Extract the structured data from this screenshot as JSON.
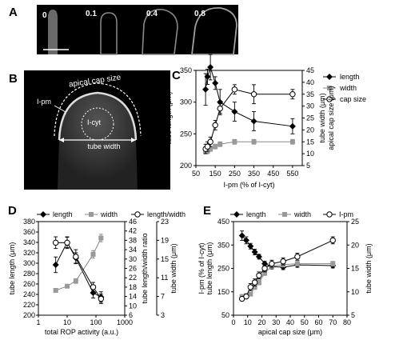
{
  "panel_letters": {
    "a": "A",
    "b": "B",
    "c": "C",
    "d": "D",
    "e": "E"
  },
  "panel_a": {
    "labels": [
      "0",
      "0.1",
      "0.4",
      "0.8"
    ]
  },
  "panel_b": {
    "cap_label": "apical cap size",
    "pm_label": "I-pm",
    "cyt_label": "I-cyt",
    "width_label": "tube width"
  },
  "chart_data": [
    {
      "panel": "C",
      "type": "line",
      "xlabel": "I-pm (% of I-cyt)",
      "ylabel_left": "tube length (μm)",
      "ylabel_right_1": "tube width (μm)",
      "ylabel_right_2": "apical cap size (μm)",
      "xlim": [
        50,
        600
      ],
      "xticks": [
        50,
        150,
        250,
        350,
        450,
        550
      ],
      "ylim_left": [
        200,
        350
      ],
      "yticks_left": [
        200,
        250,
        300,
        350
      ],
      "ylim_right": [
        5,
        45
      ],
      "yticks_right": [
        5,
        10,
        15,
        20,
        25,
        30,
        35,
        40,
        45
      ],
      "legend": [
        "length",
        "width",
        "cap size"
      ],
      "series": [
        {
          "name": "length",
          "axis": "left",
          "marker": "diamond-filled",
          "x": [
            100,
            110,
            125,
            150,
            175,
            250,
            350,
            550
          ],
          "y": [
            320,
            340,
            355,
            330,
            300,
            285,
            270,
            262
          ],
          "err": [
            25,
            12,
            20,
            10,
            20,
            15,
            15,
            12
          ]
        },
        {
          "name": "width",
          "axis": "right",
          "marker": "square-gray",
          "x": [
            100,
            110,
            125,
            150,
            175,
            250,
            350,
            550
          ],
          "y": [
            11,
            11,
            12,
            13,
            14,
            15,
            15,
            15
          ],
          "err": [
            1,
            1,
            1,
            1,
            1,
            1,
            1,
            1
          ]
        },
        {
          "name": "cap size",
          "axis": "right",
          "marker": "circle-open",
          "x": [
            100,
            110,
            125,
            150,
            175,
            250,
            350,
            550
          ],
          "y": [
            12,
            13,
            15,
            22,
            29,
            37,
            35,
            35
          ],
          "err": [
            2,
            2,
            2,
            2,
            2,
            2,
            4,
            2
          ]
        }
      ]
    },
    {
      "panel": "D",
      "type": "line",
      "xlabel": "total ROP activity (a.u.)",
      "ylabel_left": "tube length (μm)",
      "ylabel_right_1": "tube length/width ratio",
      "ylabel_right_2": "tube width (μm)",
      "xscale": "log",
      "xlim": [
        1,
        1000
      ],
      "xticks": [
        1,
        10,
        100,
        1000
      ],
      "ylim_left": [
        200,
        380
      ],
      "yticks_left": [
        200,
        220,
        240,
        260,
        280,
        300,
        320,
        340,
        360,
        380
      ],
      "ticks_right_1": [
        6,
        10,
        14,
        18,
        22,
        26,
        30,
        34,
        38,
        42,
        46
      ],
      "ticks_right_2": [
        3,
        7,
        11,
        15,
        19,
        23
      ],
      "legend": [
        "length",
        "width",
        "length/width"
      ],
      "series": [
        {
          "name": "length",
          "axis": "left",
          "marker": "diamond-filled",
          "x": [
            4,
            10,
            20,
            80,
            150
          ],
          "y": [
            297,
            340,
            310,
            243,
            235
          ],
          "err": [
            15,
            10,
            10,
            10,
            10
          ]
        },
        {
          "name": "width",
          "axis": "right2",
          "marker": "square-gray",
          "x": [
            4,
            10,
            20,
            80,
            150
          ],
          "y": [
            8.3,
            9.2,
            10.3,
            16,
            19.5
          ],
          "err": [
            0.3,
            0.3,
            0.5,
            0.8,
            0.8
          ]
        },
        {
          "name": "length/width",
          "axis": "right1",
          "marker": "circle-open",
          "x": [
            4,
            10,
            20,
            80,
            150
          ],
          "y": [
            37,
            37,
            31,
            18,
            13
          ],
          "err": [
            2.5,
            2.5,
            3,
            2,
            2
          ]
        }
      ]
    },
    {
      "panel": "E",
      "type": "line",
      "xlabel": "apical cap size (μm)",
      "ylabel_left_1": "I-pm (% of I-cyt)",
      "ylabel_left_2": "tube length (μm)",
      "ylabel_right": "tube width (μm)",
      "xlim": [
        0,
        80
      ],
      "xticks": [
        0,
        10,
        20,
        30,
        40,
        50,
        60,
        70,
        80
      ],
      "ylim_left": [
        50,
        450
      ],
      "yticks_left": [
        50,
        150,
        250,
        350,
        450
      ],
      "ylim_right": [
        5,
        25
      ],
      "yticks_right": [
        5,
        10,
        15,
        20,
        25
      ],
      "legend": [
        "length",
        "width",
        "I-pm"
      ],
      "series": [
        {
          "name": "length",
          "axis": "left",
          "marker": "diamond-filled",
          "x": [
            6,
            9,
            12,
            15,
            18,
            22,
            27,
            35,
            45,
            70
          ],
          "y": [
            390,
            370,
            345,
            320,
            300,
            270,
            258,
            255,
            265,
            262
          ],
          "err": [
            20,
            15,
            12,
            12,
            10,
            10,
            10,
            10,
            10,
            10
          ]
        },
        {
          "name": "width",
          "axis": "right",
          "marker": "square-gray",
          "x": [
            6,
            9,
            12,
            15,
            18,
            22,
            27,
            35,
            45,
            70
          ],
          "y": [
            9,
            9.2,
            9.5,
            11,
            12,
            14,
            15.5,
            15.8,
            16,
            16
          ],
          "err": [
            0.3,
            0.3,
            0.3,
            0.5,
            0.5,
            0.5,
            0.5,
            0.5,
            0.5,
            0.5
          ]
        },
        {
          "name": "I-pm",
          "axis": "left",
          "marker": "circle-open",
          "x": [
            6,
            9,
            12,
            15,
            18,
            22,
            27,
            35,
            45,
            70
          ],
          "y": [
            120,
            130,
            170,
            190,
            220,
            250,
            270,
            280,
            300,
            370
          ],
          "err": [
            5,
            5,
            15,
            15,
            15,
            15,
            15,
            15,
            15,
            15
          ]
        }
      ]
    }
  ]
}
